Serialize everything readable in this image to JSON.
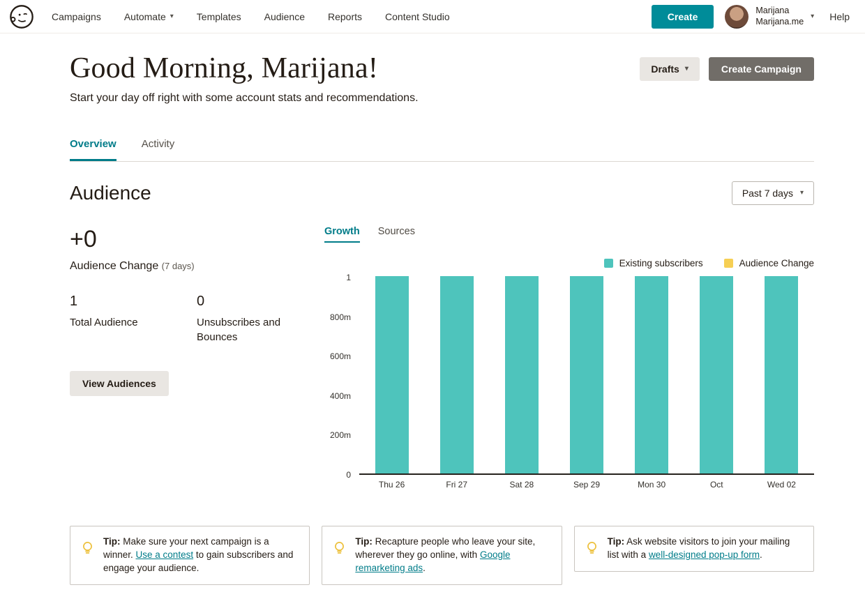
{
  "brand": {
    "logo_alt": "Mailchimp"
  },
  "nav": {
    "items": [
      {
        "label": "Campaigns",
        "dropdown": false
      },
      {
        "label": "Automate",
        "dropdown": true
      },
      {
        "label": "Templates",
        "dropdown": false
      },
      {
        "label": "Audience",
        "dropdown": false
      },
      {
        "label": "Reports",
        "dropdown": false
      },
      {
        "label": "Content Studio",
        "dropdown": false
      }
    ],
    "create_label": "Create",
    "account_name": "Marijana",
    "account_domain": "Marijana.me",
    "help_label": "Help"
  },
  "header": {
    "greeting": "Good Morning, Marijana!",
    "subtitle": "Start your day off right with some account stats and recommendations.",
    "drafts_label": "Drafts",
    "create_campaign_label": "Create Campaign"
  },
  "tabs": {
    "overview": "Overview",
    "activity": "Activity"
  },
  "audience": {
    "title": "Audience",
    "range_label": "Past 7 days",
    "change_value": "+0",
    "change_label": "Audience Change",
    "change_sublabel": "(7 days)",
    "total_value": "1",
    "total_label": "Total Audience",
    "unsub_value": "0",
    "unsub_label": "Unsubscribes and Bounces",
    "view_audiences_label": "View Audiences",
    "chart_tabs": {
      "growth": "Growth",
      "sources": "Sources"
    }
  },
  "chart_data": {
    "type": "bar",
    "title": "",
    "xlabel": "",
    "ylabel": "",
    "categories": [
      "Thu 26",
      "Fri 27",
      "Sat 28",
      "Sep 29",
      "Mon 30",
      "Oct",
      "Wed 02"
    ],
    "series": [
      {
        "name": "Existing subscribers",
        "color": "#4ec4bc",
        "values": [
          1,
          1,
          1,
          1,
          1,
          1,
          1
        ]
      },
      {
        "name": "Audience Change",
        "color": "#f6cf54",
        "values": [
          0,
          0,
          0,
          0,
          0,
          0,
          0
        ]
      }
    ],
    "ylim": [
      0,
      1
    ],
    "yticks": [
      {
        "label": "0",
        "value": 0
      },
      {
        "label": "200m",
        "value": 0.2
      },
      {
        "label": "400m",
        "value": 0.4
      },
      {
        "label": "600m",
        "value": 0.6
      },
      {
        "label": "800m",
        "value": 0.8
      },
      {
        "label": "1",
        "value": 1
      }
    ],
    "grid": false,
    "legend_position": "top-right"
  },
  "tips": [
    {
      "prefix": "Tip:",
      "text_before": " Make sure your next campaign is a winner. ",
      "link": "Use a contest",
      "text_after": " to gain subscribers and engage your audience."
    },
    {
      "prefix": "Tip:",
      "text_before": " Recapture people who leave your site, wherever they go online, with ",
      "link": "Google remarketing ads",
      "text_after": "."
    },
    {
      "prefix": "Tip:",
      "text_before": " Ask website visitors to join your mailing list with a ",
      "link": "well-designed pop-up form",
      "text_after": "."
    }
  ],
  "colors": {
    "accent_teal": "#008c99",
    "link_teal": "#007c89",
    "bar_teal": "#4ec4bc",
    "legend_yellow": "#f6cf54",
    "text_dark": "#241c15",
    "button_gray": "#716d68",
    "button_light": "#e9e6e2"
  }
}
